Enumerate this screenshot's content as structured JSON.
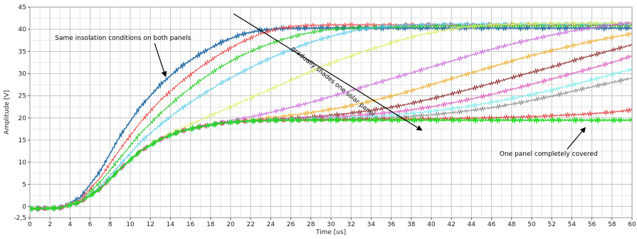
{
  "chart_data": {
    "type": "line",
    "xlabel": "Time [us]",
    "ylabel": "Amplitude [V]",
    "xlim": [
      0,
      60
    ],
    "ylim": [
      -2.5,
      45
    ],
    "xticks": [
      "0",
      "2",
      "4",
      "6",
      "8",
      "10",
      "12",
      "14",
      "16",
      "18",
      "20",
      "22",
      "24",
      "26",
      "28",
      "30",
      "32",
      "34",
      "36",
      "38",
      "40",
      "42",
      "44",
      "46",
      "48",
      "50",
      "52",
      "54",
      "56",
      "58",
      "60"
    ],
    "yticks": [
      "-2,5",
      "0",
      "5",
      "10",
      "15",
      "20",
      "25",
      "30",
      "35",
      "40",
      "45"
    ],
    "grid": true,
    "series": [
      {
        "color": "#2a6fa8",
        "x": [
          0,
          3,
          5,
          7,
          9,
          11,
          13,
          15,
          17,
          19,
          21,
          23,
          25,
          30,
          40,
          50,
          60
        ],
        "y": [
          -0.5,
          -0.3,
          2,
          8,
          16,
          22.5,
          27.5,
          31.5,
          34.5,
          37,
          38.8,
          39.8,
          40.2,
          40.3,
          40.3,
          40.3,
          40.3
        ]
      },
      {
        "color": "#ee4444",
        "x": [
          0,
          3,
          5,
          7,
          9,
          11,
          13,
          15,
          17,
          19,
          21,
          23,
          25,
          27,
          30,
          40,
          50,
          60
        ],
        "y": [
          -0.5,
          -0.3,
          1.5,
          6.5,
          13,
          19,
          24,
          28,
          31.5,
          34.5,
          37,
          39,
          40.3,
          40.8,
          41,
          41,
          41,
          41
        ]
      },
      {
        "color": "#22cc22",
        "x": [
          0,
          3,
          5,
          7,
          9,
          11,
          13,
          15,
          17,
          19,
          21,
          23,
          25,
          27,
          29,
          31,
          35,
          40,
          50,
          60
        ],
        "y": [
          -0.5,
          -0.3,
          1.2,
          5.5,
          11,
          16.5,
          21,
          25,
          28.5,
          31.5,
          34,
          36,
          37.6,
          38.8,
          39.7,
          40.2,
          40.5,
          40.7,
          40.8,
          40.8
        ]
      },
      {
        "color": "#55ccee",
        "x": [
          0,
          3,
          5,
          7,
          9,
          11,
          13,
          15,
          17,
          19,
          21,
          23,
          25,
          27,
          29,
          31,
          33,
          35,
          38,
          42,
          50,
          60
        ],
        "y": [
          -0.5,
          -0.3,
          1,
          4.5,
          9.5,
          14.5,
          18.5,
          22,
          25,
          27.8,
          30.2,
          32.5,
          34.5,
          36.3,
          37.8,
          39,
          40,
          40.6,
          41,
          41.2,
          41.2,
          41.2
        ]
      },
      {
        "color": "#ddee66",
        "x": [
          0,
          3,
          5,
          7,
          9,
          11,
          13,
          15,
          17,
          19,
          21,
          23,
          25,
          27,
          29,
          31,
          33,
          35,
          37,
          39,
          41,
          43,
          46,
          50,
          60
        ],
        "y": [
          -0.5,
          -0.3,
          1,
          4,
          8.5,
          12.5,
          15.5,
          17.5,
          19.5,
          21.5,
          23.5,
          25.5,
          27.5,
          29.5,
          31.5,
          33.2,
          34.8,
          36.2,
          37.6,
          38.8,
          39.7,
          40.4,
          41,
          41.3,
          41.4
        ]
      },
      {
        "color": "#cc66dd",
        "x": [
          0,
          3,
          5,
          7,
          9,
          11,
          13,
          15,
          17,
          19,
          21,
          23,
          25,
          28,
          31,
          34,
          37,
          40,
          43,
          46,
          49,
          52,
          55,
          58,
          60
        ],
        "y": [
          -0.5,
          -0.3,
          1,
          4,
          8.5,
          12.5,
          15.2,
          17,
          18.2,
          19,
          19.8,
          20.7,
          21.8,
          23.5,
          25.5,
          27.5,
          29.5,
          31.5,
          33.5,
          35.5,
          37.2,
          38.7,
          40,
          41,
          41.5
        ]
      },
      {
        "color": "#f0aa22",
        "x": [
          0,
          3,
          5,
          7,
          9,
          11,
          13,
          15,
          17,
          19,
          21,
          23,
          25,
          28,
          31,
          34,
          37,
          40,
          43,
          46,
          49,
          52,
          55,
          58,
          60
        ],
        "y": [
          -0.5,
          -0.3,
          1,
          4,
          8.5,
          12.5,
          15.2,
          17,
          18,
          18.8,
          19.3,
          19.8,
          20.3,
          21.2,
          22.3,
          23.8,
          25.5,
          27.5,
          29.5,
          31.5,
          33.5,
          35.2,
          36.8,
          38.2,
          39
        ]
      },
      {
        "color": "#8a2222",
        "x": [
          0,
          3,
          5,
          7,
          9,
          11,
          13,
          15,
          17,
          19,
          21,
          23,
          25,
          28,
          31,
          34,
          37,
          40,
          43,
          46,
          49,
          52,
          55,
          58,
          60
        ],
        "y": [
          -0.5,
          -0.3,
          1,
          4,
          8.5,
          12.5,
          15.2,
          17,
          18,
          18.8,
          19.2,
          19.5,
          19.8,
          20.2,
          20.8,
          21.7,
          22.8,
          24.3,
          26,
          27.8,
          29.7,
          31.5,
          33.5,
          35.3,
          36.5
        ]
      },
      {
        "color": "#dd55bb",
        "x": [
          0,
          3,
          5,
          7,
          9,
          11,
          13,
          15,
          17,
          19,
          21,
          23,
          25,
          28,
          31,
          34,
          37,
          40,
          43,
          46,
          49,
          52,
          55,
          58,
          60
        ],
        "y": [
          -0.5,
          -0.3,
          1,
          4,
          8.5,
          12.5,
          15.2,
          17,
          18,
          18.8,
          19.2,
          19.5,
          19.7,
          20,
          20.3,
          20.8,
          21.5,
          22.5,
          23.8,
          25.3,
          27,
          28.8,
          30.6,
          32.5,
          34
        ]
      },
      {
        "color": "#77eeee",
        "x": [
          0,
          3,
          5,
          7,
          9,
          11,
          13,
          15,
          17,
          19,
          21,
          23,
          25,
          28,
          31,
          34,
          37,
          40,
          43,
          46,
          49,
          52,
          55,
          58,
          60
        ],
        "y": [
          -0.5,
          -0.3,
          1,
          4,
          8.5,
          12.5,
          15.2,
          17,
          18,
          18.8,
          19.2,
          19.4,
          19.6,
          19.8,
          20,
          20.3,
          20.8,
          21.5,
          22.4,
          23.5,
          24.8,
          26.3,
          28,
          29.8,
          31
        ]
      },
      {
        "color": "#888888",
        "x": [
          0,
          3,
          5,
          7,
          9,
          11,
          13,
          15,
          17,
          19,
          21,
          23,
          25,
          28,
          31,
          34,
          37,
          40,
          43,
          46,
          49,
          52,
          55,
          58,
          60
        ],
        "y": [
          -0.5,
          -0.3,
          1,
          4,
          8.5,
          12.5,
          15.2,
          17,
          18,
          18.8,
          19.2,
          19.4,
          19.5,
          19.6,
          19.7,
          19.9,
          20.2,
          20.7,
          21.4,
          22.3,
          23.5,
          24.9,
          26.5,
          28,
          29
        ]
      },
      {
        "color": "#dd3333",
        "x": [
          0,
          3,
          5,
          7,
          9,
          11,
          13,
          15,
          17,
          19,
          21,
          23,
          25,
          30,
          35,
          40,
          45,
          50,
          55,
          58,
          60
        ],
        "y": [
          -0.5,
          -0.3,
          1,
          4,
          8.5,
          12.5,
          15.2,
          17,
          18,
          18.8,
          19.2,
          19.4,
          19.5,
          19.6,
          19.7,
          19.8,
          20,
          20.3,
          20.8,
          21.3,
          21.8
        ]
      },
      {
        "color": "#22dd22",
        "x": [
          0,
          3,
          5,
          7,
          9,
          11,
          13,
          15,
          17,
          19,
          21,
          23,
          25,
          30,
          40,
          50,
          60
        ],
        "y": [
          -0.5,
          -0.3,
          1,
          4,
          8.5,
          12.5,
          15.2,
          17,
          18,
          18.8,
          19.2,
          19.4,
          19.5,
          19.5,
          19.5,
          19.5,
          19.5
        ]
      }
    ],
    "annotations": [
      {
        "text": "Same insolation conditions on both panels",
        "x": 2.5,
        "y": 37.6,
        "arrow_to": [
          13.5,
          29.5
        ]
      },
      {
        "text": "gradually shades one solar panel",
        "x": 26,
        "y": 35.5,
        "rotate": 39.5
      },
      {
        "text": "One panel completely covered",
        "x": 46.8,
        "y": 11.5,
        "arrow_to": [
          55.3,
          17.7
        ]
      }
    ],
    "shade_arrow": {
      "from": [
        20.3,
        43.5
      ],
      "to": [
        39,
        17.3
      ]
    }
  }
}
